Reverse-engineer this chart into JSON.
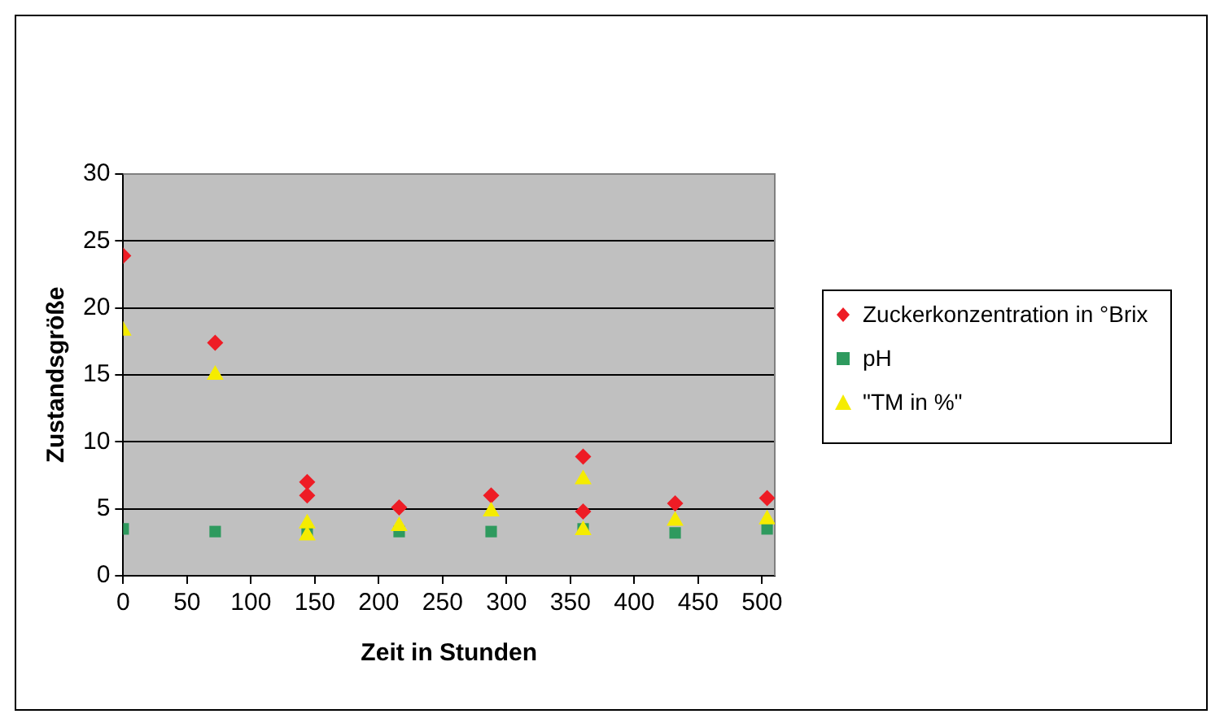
{
  "chart_data": {
    "type": "scatter",
    "xlabel": "Zeit in Stunden",
    "ylabel": "Zustandsgröße",
    "xlim": [
      0,
      510
    ],
    "xticks": [
      0,
      50,
      100,
      150,
      200,
      250,
      300,
      350,
      400,
      450,
      500
    ],
    "ylim": [
      0,
      30
    ],
    "yticks": [
      0,
      5,
      10,
      15,
      20,
      25,
      30
    ],
    "grid": "y",
    "legend": "right",
    "series": [
      {
        "name": "Zuckerkonzentration in °Brix",
        "color": "#ee1c25",
        "marker": "diamond",
        "x": [
          0,
          72,
          144,
          144,
          216,
          288,
          360,
          360,
          432,
          504
        ],
        "values": [
          23.9,
          17.4,
          7.0,
          6.0,
          5.1,
          6.0,
          8.9,
          4.8,
          5.4,
          5.8
        ]
      },
      {
        "name": "pH",
        "color": "#2e9a5e",
        "marker": "square",
        "x": [
          0,
          72,
          144,
          216,
          288,
          360,
          432,
          504
        ],
        "values": [
          3.5,
          3.3,
          3.3,
          3.3,
          3.3,
          3.5,
          3.2,
          3.5
        ]
      },
      {
        "name": "\"TM in %\"",
        "color": "#f5ec00",
        "marker": "triangle",
        "x": [
          0,
          72,
          144,
          144,
          216,
          288,
          360,
          360,
          432,
          504
        ],
        "values": [
          18.3,
          15.0,
          3.9,
          3.0,
          3.7,
          4.8,
          7.2,
          3.4,
          4.1,
          4.2
        ]
      }
    ]
  }
}
